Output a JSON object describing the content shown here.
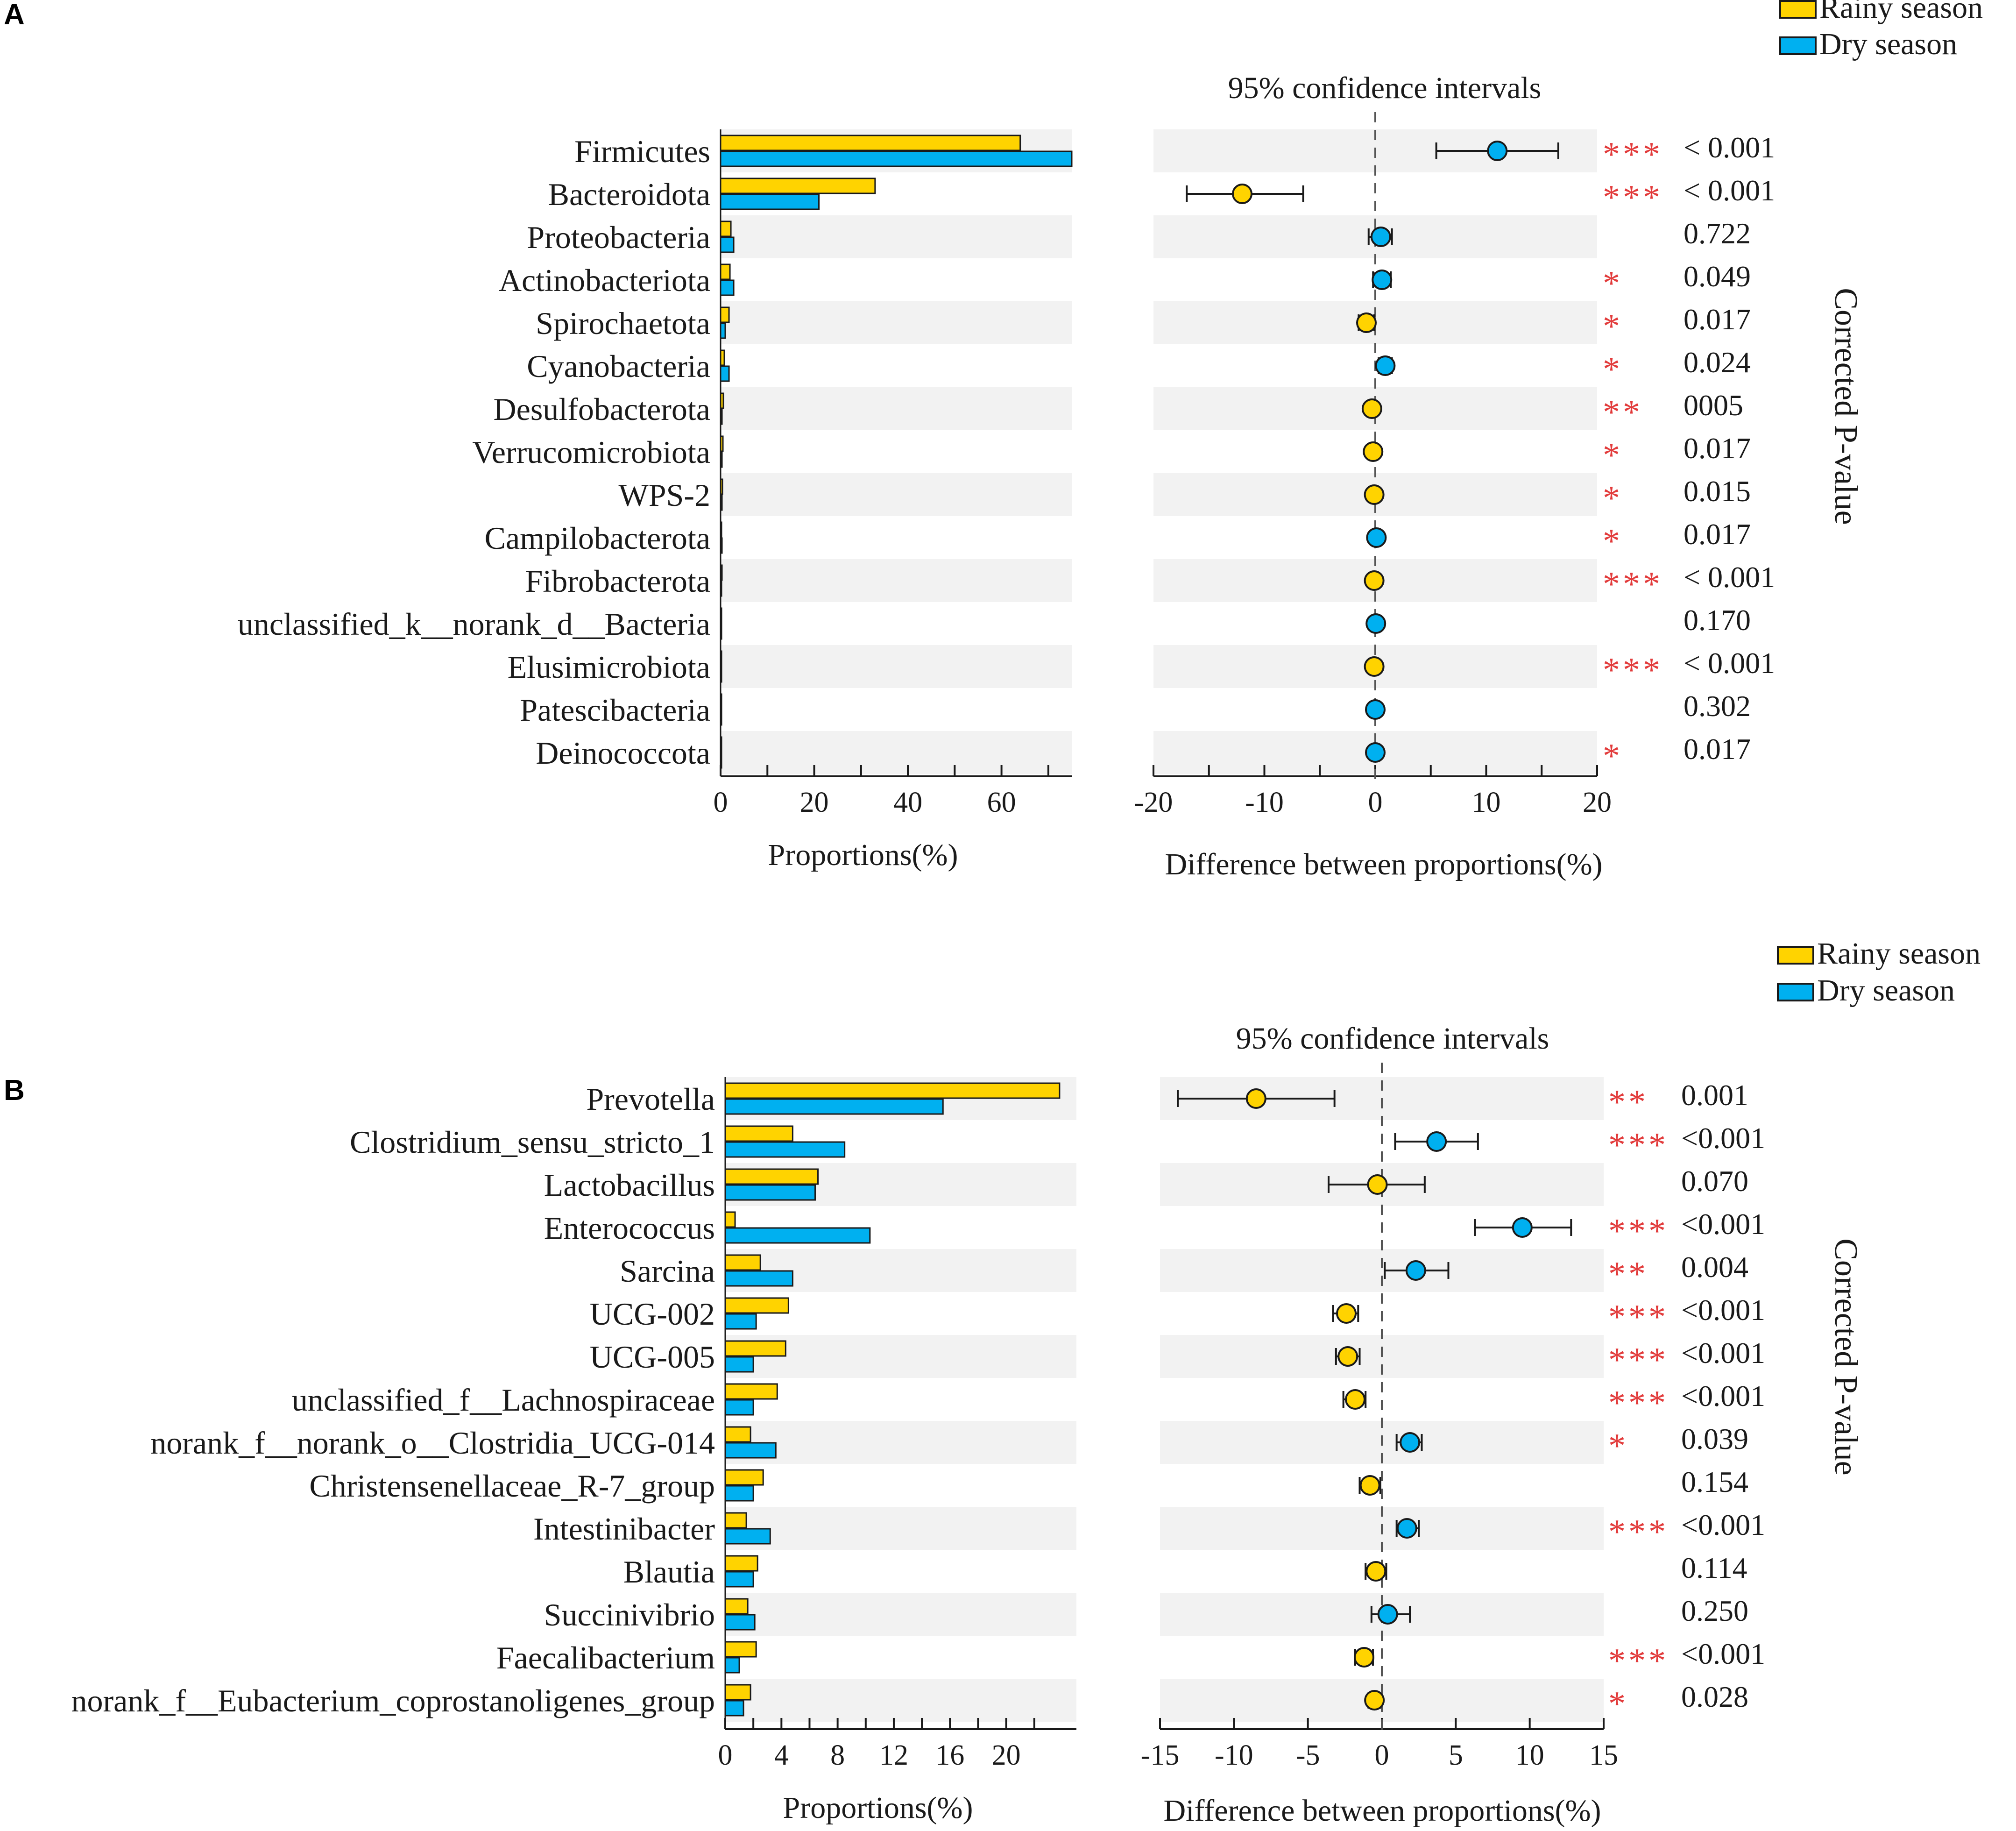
{
  "colors": {
    "rainy": "#FFD300",
    "dry": "#00B0F0",
    "stripe": "#F2F2F2",
    "star": "#E23B3B",
    "stroke": "#1a1a1a"
  },
  "chart_data": [
    {
      "type": "bar",
      "panel_label": "A",
      "title": "95% confidence intervals",
      "legend": [
        "Rainy season",
        "Dry season"
      ],
      "right_label": "Corrected P-value",
      "left_xlabel": "Proportions(%)",
      "right_xlabel": "Difference between proportions(%)",
      "left_xlim": [
        0,
        75
      ],
      "left_ticks": [
        0,
        20,
        40,
        60
      ],
      "left_minor_ticks": [
        10,
        30,
        50,
        70
      ],
      "right_xlim": [
        -20,
        20
      ],
      "right_ticks": [
        -20,
        -10,
        0,
        10,
        20
      ],
      "right_minor_ticks": [
        -15,
        -5,
        5,
        15
      ],
      "rows": [
        {
          "name": "Firmicutes",
          "rainy": 64,
          "dry": 75,
          "diff": 11,
          "ci_low": 5.5,
          "ci_high": 16.5,
          "stars": "***",
          "p": "< 0.001"
        },
        {
          "name": "Bacteroidota",
          "rainy": 33,
          "dry": 21,
          "diff": -12,
          "ci_low": -17,
          "ci_high": -6.5,
          "stars": "***",
          "p": "< 0.001"
        },
        {
          "name": "Proteobacteria",
          "rainy": 2.2,
          "dry": 2.8,
          "diff": 0.5,
          "ci_low": -0.6,
          "ci_high": 1.5,
          "stars": "",
          "p": "0.722"
        },
        {
          "name": "Actinobacteriota",
          "rainy": 2.0,
          "dry": 2.8,
          "diff": 0.6,
          "ci_low": -0.2,
          "ci_high": 1.4,
          "stars": "*",
          "p": "0.049"
        },
        {
          "name": "Spirochaetota",
          "rainy": 1.8,
          "dry": 1.0,
          "diff": -0.8,
          "ci_low": -1.5,
          "ci_high": -0.1,
          "stars": "*",
          "p": "0.017"
        },
        {
          "name": "Cyanobacteria",
          "rainy": 0.8,
          "dry": 1.8,
          "diff": 0.9,
          "ci_low": 0.3,
          "ci_high": 1.5,
          "stars": "*",
          "p": "0.024"
        },
        {
          "name": "Desulfobacterota",
          "rainy": 0.6,
          "dry": 0.3,
          "diff": -0.3,
          "ci_low": -0.6,
          "ci_high": 0.0,
          "stars": "**",
          "p": "0005"
        },
        {
          "name": "Verrucomicrobiota",
          "rainy": 0.5,
          "dry": 0.3,
          "diff": -0.2,
          "ci_low": -0.5,
          "ci_high": 0.1,
          "stars": "*",
          "p": "0.017"
        },
        {
          "name": "WPS-2",
          "rainy": 0.4,
          "dry": 0.3,
          "diff": -0.1,
          "ci_low": -0.3,
          "ci_high": 0.1,
          "stars": "*",
          "p": "0.015"
        },
        {
          "name": "Campilobacterota",
          "rainy": 0.2,
          "dry": 0.3,
          "diff": 0.1,
          "ci_low": -0.1,
          "ci_high": 0.3,
          "stars": "*",
          "p": "0.017"
        },
        {
          "name": "Fibrobacterota",
          "rainy": 0.3,
          "dry": 0.2,
          "diff": -0.1,
          "ci_low": -0.2,
          "ci_high": 0.0,
          "stars": "***",
          "p": "< 0.001"
        },
        {
          "name": "unclassified_k__norank_d__Bacteria",
          "rainy": 0.2,
          "dry": 0.2,
          "diff": 0.05,
          "ci_low": -0.1,
          "ci_high": 0.2,
          "stars": "",
          "p": "0.170"
        },
        {
          "name": "Elusimicrobiota",
          "rainy": 0.2,
          "dry": 0.1,
          "diff": -0.1,
          "ci_low": -0.2,
          "ci_high": 0.0,
          "stars": "***",
          "p": "< 0.001"
        },
        {
          "name": "Patescibacteria",
          "rainy": 0.1,
          "dry": 0.1,
          "diff": 0.0,
          "ci_low": -0.1,
          "ci_high": 0.1,
          "stars": "",
          "p": "0.302"
        },
        {
          "name": "Deinococcota",
          "rainy": 0.1,
          "dry": 0.1,
          "diff": 0.0,
          "ci_low": -0.1,
          "ci_high": 0.1,
          "stars": "*",
          "p": "0.017"
        }
      ]
    },
    {
      "type": "bar",
      "panel_label": "B",
      "title": "95% confidence intervals",
      "legend": [
        "Rainy season",
        "Dry season"
      ],
      "right_label": "Corrected P-value",
      "left_xlabel": "Proportions(%)",
      "right_xlabel": "Difference between proportions(%)",
      "left_xlim": [
        0,
        25
      ],
      "left_ticks": [
        0,
        4,
        8,
        12,
        16,
        20
      ],
      "left_minor_ticks": [
        2,
        6,
        10,
        14,
        18,
        22
      ],
      "right_xlim": [
        -15,
        15
      ],
      "right_ticks": [
        -15,
        -10,
        -5,
        0,
        5,
        10,
        15
      ],
      "right_minor_ticks": [],
      "rows": [
        {
          "name": "Prevotella",
          "rainy": 23.8,
          "dry": 15.5,
          "diff": -8.5,
          "ci_low": -13.8,
          "ci_high": -3.2,
          "stars": "**",
          "p": "0.001"
        },
        {
          "name": "Clostridium_sensu_stricto_1",
          "rainy": 4.8,
          "dry": 8.5,
          "diff": 3.7,
          "ci_low": 0.9,
          "ci_high": 6.5,
          "stars": "***",
          "p": "<0.001"
        },
        {
          "name": "Lactobacillus",
          "rainy": 6.6,
          "dry": 6.4,
          "diff": -0.3,
          "ci_low": -3.6,
          "ci_high": 2.9,
          "stars": "",
          "p": "0.070"
        },
        {
          "name": "Enterococcus",
          "rainy": 0.7,
          "dry": 10.3,
          "diff": 9.5,
          "ci_low": 6.3,
          "ci_high": 12.8,
          "stars": "***",
          "p": "<0.001"
        },
        {
          "name": "Sarcina",
          "rainy": 2.5,
          "dry": 4.8,
          "diff": 2.3,
          "ci_low": 0.2,
          "ci_high": 4.5,
          "stars": "**",
          "p": "0.004"
        },
        {
          "name": "UCG-002",
          "rainy": 4.5,
          "dry": 2.2,
          "diff": -2.4,
          "ci_low": -3.3,
          "ci_high": -1.6,
          "stars": "***",
          "p": "<0.001"
        },
        {
          "name": "UCG-005",
          "rainy": 4.3,
          "dry": 2.0,
          "diff": -2.3,
          "ci_low": -3.1,
          "ci_high": -1.5,
          "stars": "***",
          "p": "<0.001"
        },
        {
          "name": "unclassified_f__Lachnospiraceae",
          "rainy": 3.7,
          "dry": 2.0,
          "diff": -1.8,
          "ci_low": -2.6,
          "ci_high": -1.1,
          "stars": "***",
          "p": "<0.001"
        },
        {
          "name": "norank_f__norank_o__Clostridia_UCG-014",
          "rainy": 1.8,
          "dry": 3.6,
          "diff": 1.9,
          "ci_low": 1.0,
          "ci_high": 2.7,
          "stars": "*",
          "p": "0.039"
        },
        {
          "name": "Christensenellaceae_R-7_group",
          "rainy": 2.7,
          "dry": 2.0,
          "diff": -0.8,
          "ci_low": -1.5,
          "ci_high": -0.1,
          "stars": "",
          "p": "0.154"
        },
        {
          "name": "Intestinibacter",
          "rainy": 1.5,
          "dry": 3.2,
          "diff": 1.7,
          "ci_low": 1.0,
          "ci_high": 2.5,
          "stars": "***",
          "p": "<0.001"
        },
        {
          "name": "Blautia",
          "rainy": 2.3,
          "dry": 2.0,
          "diff": -0.4,
          "ci_low": -1.1,
          "ci_high": 0.3,
          "stars": "",
          "p": "0.114"
        },
        {
          "name": "Succinivibrio",
          "rainy": 1.6,
          "dry": 2.1,
          "diff": 0.4,
          "ci_low": -0.7,
          "ci_high": 1.9,
          "stars": "",
          "p": "0.250"
        },
        {
          "name": "Faecalibacterium",
          "rainy": 2.2,
          "dry": 1.0,
          "diff": -1.2,
          "ci_low": -1.8,
          "ci_high": -0.6,
          "stars": "***",
          "p": "<0.001"
        },
        {
          "name": "norank_f__Eubacterium_coprostanoligenes_group",
          "rainy": 1.8,
          "dry": 1.3,
          "diff": -0.5,
          "ci_low": -0.9,
          "ci_high": -0.1,
          "stars": "*",
          "p": "0.028"
        }
      ]
    }
  ]
}
